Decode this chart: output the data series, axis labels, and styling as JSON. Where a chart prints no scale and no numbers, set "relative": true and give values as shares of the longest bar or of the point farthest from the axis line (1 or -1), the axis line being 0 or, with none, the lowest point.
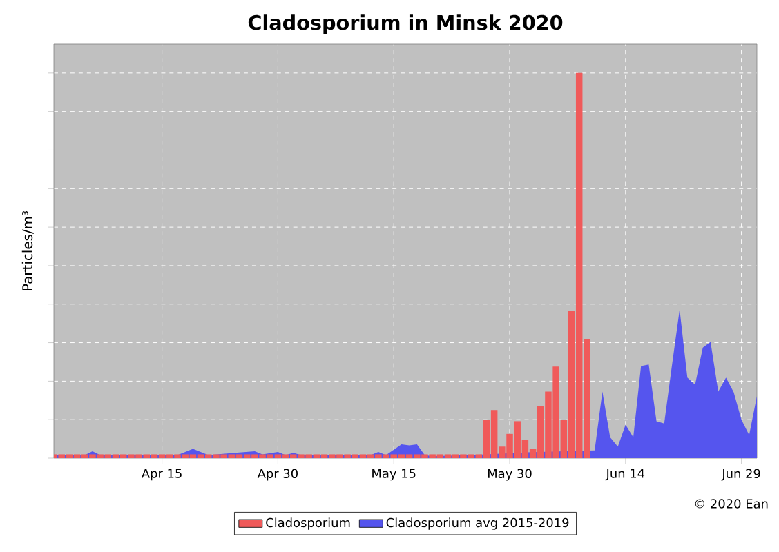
{
  "chart_data": {
    "type": "bar",
    "title": "Cladosporium in Minsk 2020",
    "ylabel": "Particles/m³",
    "annotations": [
      "© 2020 Ean"
    ],
    "relative": true,
    "grid": true,
    "legend": "bottom",
    "xlim": [
      "2020-04-01",
      "2020-07-01"
    ],
    "xticks": [
      {
        "value": "2020-04-15",
        "label": "Apr 15"
      },
      {
        "value": "2020-04-30",
        "label": "Apr 30"
      },
      {
        "value": "2020-05-15",
        "label": "May 15"
      },
      {
        "value": "2020-05-30",
        "label": "May 30"
      },
      {
        "value": "2020-06-14",
        "label": "Jun 14"
      },
      {
        "value": "2020-06-29",
        "label": "Jun 29"
      }
    ],
    "series": [
      {
        "name": "Cladosporium avg 2015-2019",
        "type": "area",
        "color": "#5555ee",
        "x": [
          "2020-04-01",
          "2020-04-05",
          "2020-04-06",
          "2020-04-07",
          "2020-04-17",
          "2020-04-19",
          "2020-04-21",
          "2020-04-25",
          "2020-04-27",
          "2020-04-28",
          "2020-04-30",
          "2020-05-01",
          "2020-05-02",
          "2020-05-03",
          "2020-05-12",
          "2020-05-13",
          "2020-05-14",
          "2020-05-16",
          "2020-05-17",
          "2020-05-18",
          "2020-05-19",
          "2020-05-20",
          "2020-05-25",
          "2020-05-27",
          "2020-06-01",
          "2020-06-05",
          "2020-06-09",
          "2020-06-10",
          "2020-06-11",
          "2020-06-12",
          "2020-06-13",
          "2020-06-14",
          "2020-06-15",
          "2020-06-16",
          "2020-06-17",
          "2020-06-18",
          "2020-06-19",
          "2020-06-20",
          "2020-06-21",
          "2020-06-22",
          "2020-06-23",
          "2020-06-24",
          "2020-06-25",
          "2020-06-26",
          "2020-06-27",
          "2020-06-28",
          "2020-06-29",
          "2020-06-30",
          "2020-07-01"
        ],
        "values": [
          0.008,
          0.008,
          0.018,
          0.008,
          0.008,
          0.024,
          0.008,
          0.015,
          0.018,
          0.01,
          0.016,
          0.008,
          0.014,
          0.008,
          0.008,
          0.016,
          0.008,
          0.036,
          0.033,
          0.036,
          0.008,
          0.005,
          0.008,
          null,
          0.015,
          null,
          null,
          0.02,
          0.173,
          0.054,
          0.03,
          0.087,
          0.054,
          0.239,
          0.243,
          0.096,
          0.09,
          0.24,
          0.386,
          0.209,
          0.191,
          0.287,
          0.302,
          0.173,
          0.209,
          0.171,
          0.1,
          0.06,
          0.161
        ]
      },
      {
        "name": "Cladosporium",
        "color": "#f05a5a",
        "x": [
          "2020-04-01",
          "2020-04-02",
          "2020-04-03",
          "2020-04-04",
          "2020-04-05",
          "2020-04-06",
          "2020-04-07",
          "2020-04-08",
          "2020-04-09",
          "2020-04-10",
          "2020-04-11",
          "2020-04-12",
          "2020-04-13",
          "2020-04-14",
          "2020-04-15",
          "2020-04-16",
          "2020-04-17",
          "2020-04-18",
          "2020-04-19",
          "2020-04-20",
          "2020-04-21",
          "2020-04-22",
          "2020-04-23",
          "2020-04-24",
          "2020-04-25",
          "2020-04-26",
          "2020-04-27",
          "2020-04-28",
          "2020-04-29",
          "2020-04-30",
          "2020-05-01",
          "2020-05-02",
          "2020-05-03",
          "2020-05-04",
          "2020-05-05",
          "2020-05-06",
          "2020-05-07",
          "2020-05-08",
          "2020-05-09",
          "2020-05-10",
          "2020-05-11",
          "2020-05-12",
          "2020-05-13",
          "2020-05-14",
          "2020-05-15",
          "2020-05-16",
          "2020-05-17",
          "2020-05-18",
          "2020-05-19",
          "2020-05-20",
          "2020-05-21",
          "2020-05-22",
          "2020-05-23",
          "2020-05-24",
          "2020-05-25",
          "2020-05-26",
          "2020-05-27",
          "2020-05-28",
          "2020-05-29",
          "2020-05-30",
          "2020-05-31",
          "2020-06-01",
          "2020-06-02",
          "2020-06-03",
          "2020-06-04",
          "2020-06-05",
          "2020-06-06",
          "2020-06-07",
          "2020-06-08",
          "2020-06-09"
        ],
        "values": [
          0.01,
          0.01,
          0.01,
          0.01,
          0.01,
          0.01,
          0.01,
          0.01,
          0.01,
          0.01,
          0.01,
          0.01,
          0.01,
          0.01,
          0.01,
          0.01,
          0.01,
          0.01,
          0.01,
          0.01,
          0.01,
          0.01,
          0.01,
          0.01,
          0.01,
          0.01,
          0.01,
          0.01,
          0.01,
          0.01,
          0.01,
          0.01,
          0.01,
          0.01,
          0.01,
          0.01,
          0.01,
          0.01,
          0.01,
          0.01,
          0.01,
          0.01,
          0.01,
          0.01,
          0.01,
          0.01,
          0.01,
          0.01,
          0.01,
          0.01,
          0.01,
          0.01,
          0.01,
          0.01,
          0.01,
          0.01,
          0.1,
          0.125,
          0.03,
          0.063,
          0.096,
          0.048,
          0.024,
          0.135,
          0.173,
          0.238,
          0.1,
          0.382,
          1,
          0.308
        ]
      }
    ]
  }
}
